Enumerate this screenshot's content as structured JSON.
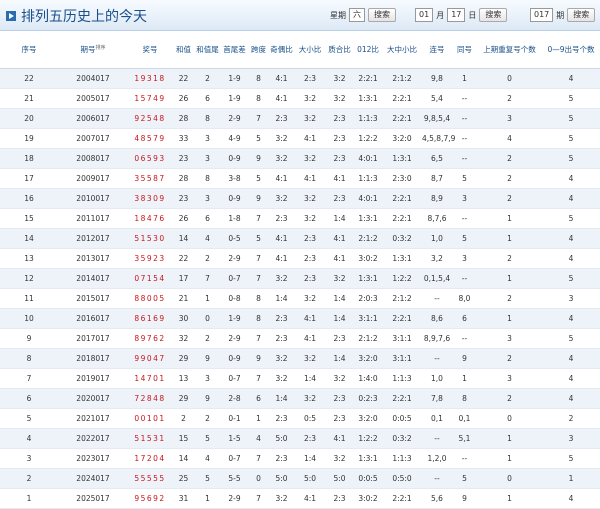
{
  "header": {
    "title": "排列五历史上的今天",
    "weekday_label": "星期",
    "weekday": "六",
    "search": "搜索",
    "month": "01",
    "month_label": "月",
    "day": "17",
    "day_label": "日",
    "issue": "017",
    "issue_label": "期"
  },
  "table": {
    "sort_label": "排序",
    "columns": [
      "序号",
      "期号",
      "奖号",
      "和值",
      "和值尾",
      "首尾差",
      "跨度",
      "奇偶比",
      "大小比",
      "质合比",
      "012比",
      "大中小比",
      "连号",
      "同号",
      "上期重复号个数",
      "0—9出号个数"
    ],
    "rows": [
      [
        "22",
        "2004017",
        "19318",
        "22",
        "2",
        "1-9",
        "8",
        "4:1",
        "2:3",
        "3:2",
        "2:2:1",
        "2:1:2",
        "9,8",
        "1",
        "0",
        "4"
      ],
      [
        "21",
        "2005017",
        "15749",
        "26",
        "6",
        "1-9",
        "8",
        "4:1",
        "3:2",
        "3:2",
        "1:3:1",
        "2:2:1",
        "5,4",
        "--",
        "2",
        "5"
      ],
      [
        "20",
        "2006017",
        "92548",
        "28",
        "8",
        "2-9",
        "7",
        "2:3",
        "3:2",
        "2:3",
        "1:1:3",
        "2:2:1",
        "9,8,5,4",
        "--",
        "3",
        "5"
      ],
      [
        "19",
        "2007017",
        "48579",
        "33",
        "3",
        "4-9",
        "5",
        "3:2",
        "4:1",
        "2:3",
        "1:2:2",
        "3:2:0",
        "4,5,8,7,9",
        "--",
        "4",
        "5"
      ],
      [
        "18",
        "2008017",
        "06593",
        "23",
        "3",
        "0-9",
        "9",
        "3:2",
        "3:2",
        "2:3",
        "4:0:1",
        "1:3:1",
        "6,5",
        "--",
        "2",
        "5"
      ],
      [
        "17",
        "2009017",
        "35587",
        "28",
        "8",
        "3-8",
        "5",
        "4:1",
        "4:1",
        "4:1",
        "1:1:3",
        "2:3:0",
        "8,7",
        "5",
        "2",
        "4"
      ],
      [
        "16",
        "2010017",
        "38309",
        "23",
        "3",
        "0-9",
        "9",
        "3:2",
        "3:2",
        "2:3",
        "4:0:1",
        "2:2:1",
        "8,9",
        "3",
        "2",
        "4"
      ],
      [
        "15",
        "2011017",
        "18476",
        "26",
        "6",
        "1-8",
        "7",
        "2:3",
        "3:2",
        "1:4",
        "1:3:1",
        "2:2:1",
        "8,7,6",
        "--",
        "1",
        "5"
      ],
      [
        "14",
        "2012017",
        "51530",
        "14",
        "4",
        "0-5",
        "5",
        "4:1",
        "2:3",
        "4:1",
        "2:1:2",
        "0:3:2",
        "1,0",
        "5",
        "1",
        "4"
      ],
      [
        "13",
        "2013017",
        "35923",
        "22",
        "2",
        "2-9",
        "7",
        "4:1",
        "2:3",
        "4:1",
        "3:0:2",
        "1:3:1",
        "3,2",
        "3",
        "2",
        "4"
      ],
      [
        "12",
        "2014017",
        "07154",
        "17",
        "7",
        "0-7",
        "7",
        "3:2",
        "2:3",
        "3:2",
        "1:3:1",
        "1:2:2",
        "0,1,5,4",
        "--",
        "1",
        "5"
      ],
      [
        "11",
        "2015017",
        "88005",
        "21",
        "1",
        "0-8",
        "8",
        "1:4",
        "3:2",
        "1:4",
        "2:0:3",
        "2:1:2",
        "--",
        "8,0",
        "2",
        "3"
      ],
      [
        "10",
        "2016017",
        "86169",
        "30",
        "0",
        "1-9",
        "8",
        "2:3",
        "4:1",
        "1:4",
        "3:1:1",
        "2:2:1",
        "8,6",
        "6",
        "1",
        "4"
      ],
      [
        "9",
        "2017017",
        "89762",
        "32",
        "2",
        "2-9",
        "7",
        "2:3",
        "4:1",
        "2:3",
        "2:1:2",
        "3:1:1",
        "8,9,7,6",
        "--",
        "3",
        "5"
      ],
      [
        "8",
        "2018017",
        "99047",
        "29",
        "9",
        "0-9",
        "9",
        "3:2",
        "3:2",
        "1:4",
        "3:2:0",
        "3:1:1",
        "--",
        "9",
        "2",
        "4"
      ],
      [
        "7",
        "2019017",
        "14701",
        "13",
        "3",
        "0-7",
        "7",
        "3:2",
        "1:4",
        "3:2",
        "1:4:0",
        "1:1:3",
        "1,0",
        "1",
        "3",
        "4"
      ],
      [
        "6",
        "2020017",
        "72848",
        "29",
        "9",
        "2-8",
        "6",
        "1:4",
        "3:2",
        "2:3",
        "0:2:3",
        "2:2:1",
        "7,8",
        "8",
        "2",
        "4"
      ],
      [
        "5",
        "2021017",
        "00101",
        "2",
        "2",
        "0-1",
        "1",
        "2:3",
        "0:5",
        "2:3",
        "3:2:0",
        "0:0:5",
        "0,1",
        "0,1",
        "0",
        "2"
      ],
      [
        "4",
        "2022017",
        "51531",
        "15",
        "5",
        "1-5",
        "4",
        "5:0",
        "2:3",
        "4:1",
        "1:2:2",
        "0:3:2",
        "--",
        "5,1",
        "1",
        "3"
      ],
      [
        "3",
        "2023017",
        "17204",
        "14",
        "4",
        "0-7",
        "7",
        "2:3",
        "1:4",
        "3:2",
        "1:3:1",
        "1:1:3",
        "1,2,0",
        "--",
        "1",
        "5"
      ],
      [
        "2",
        "2024017",
        "55555",
        "25",
        "5",
        "5-5",
        "0",
        "5:0",
        "5:0",
        "5:0",
        "0:0:5",
        "0:5:0",
        "--",
        "5",
        "0",
        "1"
      ],
      [
        "1",
        "2025017",
        "95692",
        "31",
        "1",
        "2-9",
        "7",
        "3:2",
        "4:1",
        "2:3",
        "3:0:2",
        "2:2:1",
        "5,6",
        "9",
        "1",
        "4"
      ]
    ]
  }
}
